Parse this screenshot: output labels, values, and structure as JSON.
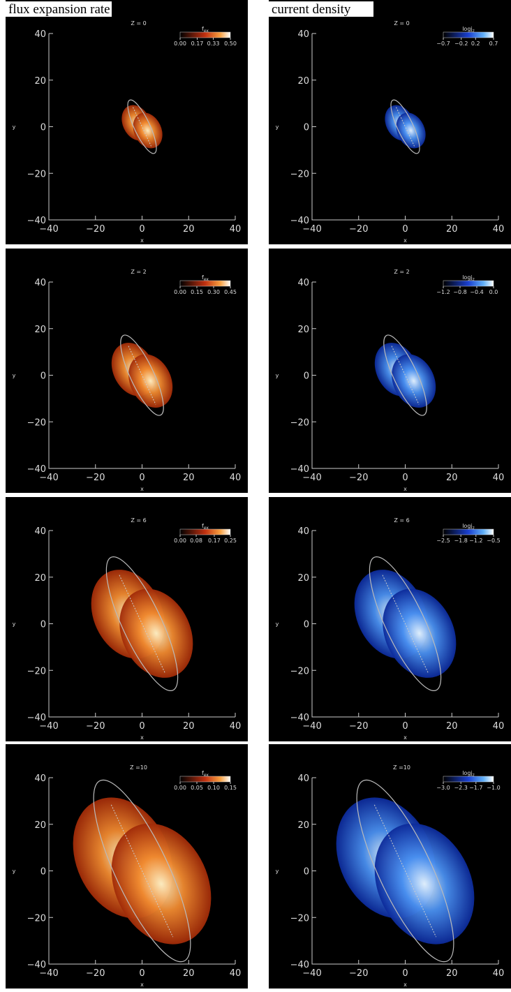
{
  "headers": [
    "flux expansion rate",
    "current density"
  ],
  "chart_data": [
    {
      "type": "image",
      "title": "Z = 0",
      "colorbar_label": "f",
      "colorbar_subscript": "ex",
      "clim": [
        0,
        0.5
      ],
      "cticks": [
        {
          "value": 0,
          "label": "0.00"
        },
        0.17,
        0.33,
        {
          "value": 0.5,
          "label": "0.50"
        }
      ],
      "xlim": [
        -40,
        40
      ],
      "ylim": [
        -40,
        40
      ],
      "xticks": [
        {
          "value": -40,
          "label": "−40"
        },
        {
          "value": -20,
          "label": "−20"
        },
        0,
        20,
        40
      ],
      "yticks": [
        {
          "value": -40,
          "label": "−40"
        },
        {
          "value": -20,
          "label": "−20"
        },
        0,
        20,
        40
      ],
      "xlabel": "x",
      "ylabel": "y"
    },
    {
      "type": "image",
      "title": "Z = 0",
      "colorbar_label": "logj",
      "colorbar_subscript": "z",
      "clim": [
        -0.7,
        0.7
      ],
      "cticks": [
        {
          "value": -0.7,
          "label": "−0.7"
        },
        {
          "value": -0.2,
          "label": "−0.2"
        },
        0.2,
        0.7
      ],
      "xlim": [
        -40,
        40
      ],
      "ylim": [
        -40,
        40
      ],
      "xticks": [
        {
          "value": -40,
          "label": "−40"
        },
        {
          "value": -20,
          "label": "−20"
        },
        0,
        20,
        40
      ],
      "yticks": [
        {
          "value": -40,
          "label": "−40"
        },
        {
          "value": -20,
          "label": "−20"
        },
        0,
        20,
        40
      ],
      "xlabel": "x",
      "ylabel": "y"
    },
    {
      "type": "image",
      "title": "Z = 2",
      "colorbar_label": "f",
      "colorbar_subscript": "ex",
      "clim": [
        0,
        0.45
      ],
      "cticks": [
        {
          "value": 0,
          "label": "0.00"
        },
        0.15,
        {
          "value": 0.3,
          "label": "0.30"
        },
        0.45
      ],
      "xlim": [
        -40,
        40
      ],
      "ylim": [
        -40,
        40
      ],
      "xticks": [
        {
          "value": -40,
          "label": "−40"
        },
        {
          "value": -20,
          "label": "−20"
        },
        0,
        20,
        40
      ],
      "yticks": [
        {
          "value": -40,
          "label": "−40"
        },
        {
          "value": -20,
          "label": "−20"
        },
        0,
        20,
        40
      ],
      "xlabel": "x",
      "ylabel": "y"
    },
    {
      "type": "image",
      "title": "Z = 2",
      "colorbar_label": "logj",
      "colorbar_subscript": "z",
      "clim": [
        -1.2,
        0
      ],
      "cticks": [
        {
          "value": -1.2,
          "label": "−1.2"
        },
        {
          "value": -0.8,
          "label": "−0.8"
        },
        {
          "value": -0.4,
          "label": "−0.4"
        },
        {
          "value": 0,
          "label": "0.0"
        }
      ],
      "xlim": [
        -40,
        40
      ],
      "ylim": [
        -40,
        40
      ],
      "xticks": [
        {
          "value": -40,
          "label": "−40"
        },
        {
          "value": -20,
          "label": "−20"
        },
        0,
        20,
        40
      ],
      "yticks": [
        {
          "value": -40,
          "label": "−40"
        },
        {
          "value": -20,
          "label": "−20"
        },
        0,
        20,
        40
      ],
      "xlabel": "x",
      "ylabel": "y"
    },
    {
      "type": "image",
      "title": "Z = 6",
      "colorbar_label": "f",
      "colorbar_subscript": "ex",
      "clim": [
        0,
        0.25
      ],
      "cticks": [
        {
          "value": 0,
          "label": "0.00"
        },
        {
          "value": 0.08,
          "label": "0.08"
        },
        0.17,
        0.25
      ],
      "xlim": [
        -40,
        40
      ],
      "ylim": [
        -40,
        40
      ],
      "xticks": [
        {
          "value": -40,
          "label": "−40"
        },
        {
          "value": -20,
          "label": "−20"
        },
        0,
        20,
        40
      ],
      "yticks": [
        {
          "value": -40,
          "label": "−40"
        },
        {
          "value": -20,
          "label": "−20"
        },
        0,
        20,
        40
      ],
      "xlabel": "x",
      "ylabel": "y"
    },
    {
      "type": "image",
      "title": "Z = 6",
      "colorbar_label": "logj",
      "colorbar_subscript": "z",
      "clim": [
        -2.5,
        -0.5
      ],
      "cticks": [
        {
          "value": -2.5,
          "label": "−2.5"
        },
        {
          "value": -1.8,
          "label": "−1.8"
        },
        {
          "value": -1.2,
          "label": "−1.2"
        },
        {
          "value": -0.5,
          "label": "−0.5"
        }
      ],
      "xlim": [
        -40,
        40
      ],
      "ylim": [
        -40,
        40
      ],
      "xticks": [
        {
          "value": -40,
          "label": "−40"
        },
        {
          "value": -20,
          "label": "−20"
        },
        0,
        20,
        40
      ],
      "yticks": [
        {
          "value": -40,
          "label": "−40"
        },
        {
          "value": -20,
          "label": "−20"
        },
        0,
        20,
        40
      ],
      "xlabel": "x",
      "ylabel": "y"
    },
    {
      "type": "image",
      "title": "Z =10",
      "colorbar_label": "f",
      "colorbar_subscript": "ex",
      "clim": [
        0,
        0.15
      ],
      "cticks": [
        {
          "value": 0,
          "label": "0.00"
        },
        {
          "value": 0.05,
          "label": "0.05"
        },
        {
          "value": 0.1,
          "label": "0.10"
        },
        0.15
      ],
      "xlim": [
        -40,
        40
      ],
      "ylim": [
        -40,
        40
      ],
      "xticks": [
        {
          "value": -40,
          "label": "−40"
        },
        {
          "value": -20,
          "label": "−20"
        },
        0,
        20,
        40
      ],
      "yticks": [
        {
          "value": -40,
          "label": "−40"
        },
        {
          "value": -20,
          "label": "−20"
        },
        0,
        20,
        40
      ],
      "xlabel": "x",
      "ylabel": "y"
    },
    {
      "type": "image",
      "title": "Z =10",
      "colorbar_label": "logj",
      "colorbar_subscript": "z",
      "clim": [
        -3,
        -1
      ],
      "cticks": [
        {
          "value": -3,
          "label": "−3.0"
        },
        {
          "value": -2.3,
          "label": "−2.3"
        },
        {
          "value": -1.7,
          "label": "−1.7"
        },
        {
          "value": -1,
          "label": "−1.0"
        }
      ],
      "xlim": [
        -40,
        40
      ],
      "ylim": [
        -40,
        40
      ],
      "xticks": [
        {
          "value": -40,
          "label": "−40"
        },
        {
          "value": -20,
          "label": "−20"
        },
        0,
        20,
        40
      ],
      "yticks": [
        {
          "value": -40,
          "label": "−40"
        },
        {
          "value": -20,
          "label": "−20"
        },
        0,
        20,
        40
      ],
      "xlabel": "x",
      "ylabel": "y"
    }
  ]
}
